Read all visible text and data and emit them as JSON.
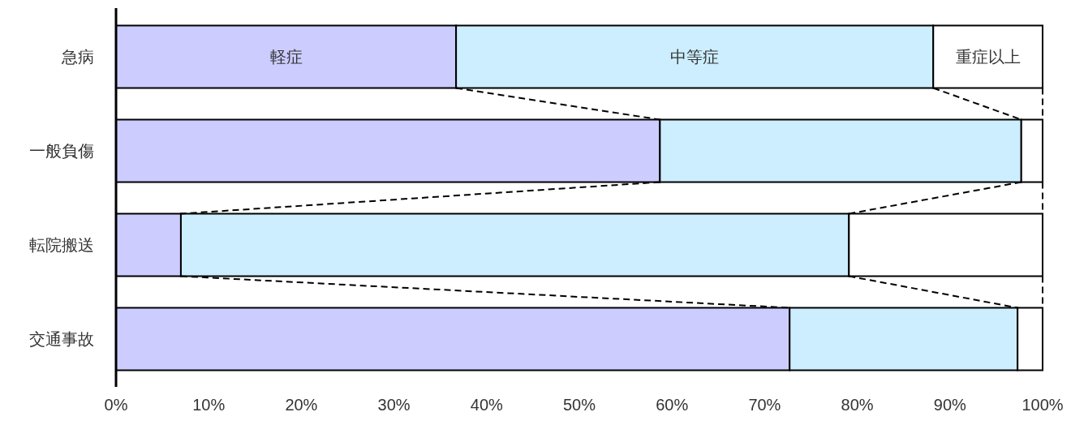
{
  "chart_data": {
    "type": "bar",
    "orientation": "horizontal",
    "stacked": true,
    "categories": [
      "急病",
      "一般負傷",
      "転院搬送",
      "交通事故"
    ],
    "series": [
      {
        "name": "軽症",
        "color": "#ccccff",
        "values": [
          36.7,
          58.7,
          7.0,
          72.7
        ]
      },
      {
        "name": "中等症",
        "color": "#cceeff",
        "values": [
          51.5,
          39.0,
          72.1,
          24.6
        ]
      },
      {
        "name": "重症以上",
        "color": "#ffffff",
        "values": [
          11.8,
          2.3,
          20.9,
          2.7
        ]
      }
    ],
    "xlim": [
      0,
      100
    ],
    "xticks": [
      {
        "value": 0,
        "label": "0%"
      },
      {
        "value": 10,
        "label": "10%"
      },
      {
        "value": 20,
        "label": "20%"
      },
      {
        "value": 30,
        "label": "30%"
      },
      {
        "value": 40,
        "label": "40%"
      },
      {
        "value": 50,
        "label": "50%"
      },
      {
        "value": 60,
        "label": "60%"
      },
      {
        "value": 70,
        "label": "70%"
      },
      {
        "value": 80,
        "label": "80%"
      },
      {
        "value": 90,
        "label": "90%"
      },
      {
        "value": 100,
        "label": "100%"
      }
    ],
    "legend": false
  }
}
